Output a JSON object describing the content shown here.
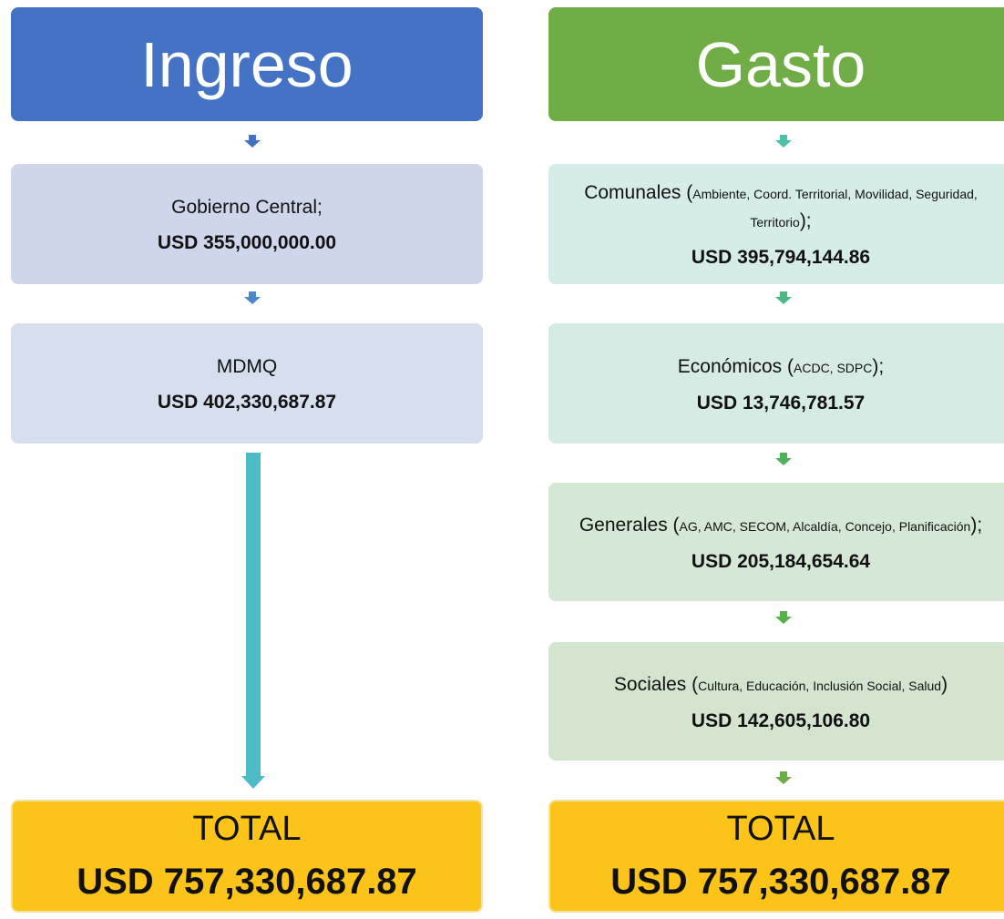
{
  "ingreso": {
    "title": "Ingreso",
    "items": [
      {
        "label": "Gobierno Central;",
        "amount": "USD 355,000,000.00"
      },
      {
        "label": "MDMQ",
        "amount": "USD 402,330,687.87"
      }
    ],
    "total": {
      "label": "TOTAL",
      "amount": "USD 757,330,687.87"
    }
  },
  "gasto": {
    "title": "Gasto",
    "items": [
      {
        "name": "Comunales (",
        "detail": "Ambiente, Coord. Territorial, Movilidad, Seguridad, Territorio",
        "close": ");",
        "amount": "USD 395,794,144.86"
      },
      {
        "name": "Económicos (",
        "detail": "ACDC, SDPC",
        "close": ");",
        "amount": "USD 13,746,781.57"
      },
      {
        "name": "Generales (",
        "detail": "AG, AMC, SECOM, Alcaldía, Concejo, Planificación",
        "close": ");",
        "amount": "USD 205,184,654.64"
      },
      {
        "name": "Sociales (",
        "detail": "Cultura, Educación, Inclusión Social, Salud",
        "close": ")",
        "amount": "USD 142,605,106.80"
      }
    ],
    "total": {
      "label": "TOTAL",
      "amount": "USD 757,330,687.87"
    }
  }
}
